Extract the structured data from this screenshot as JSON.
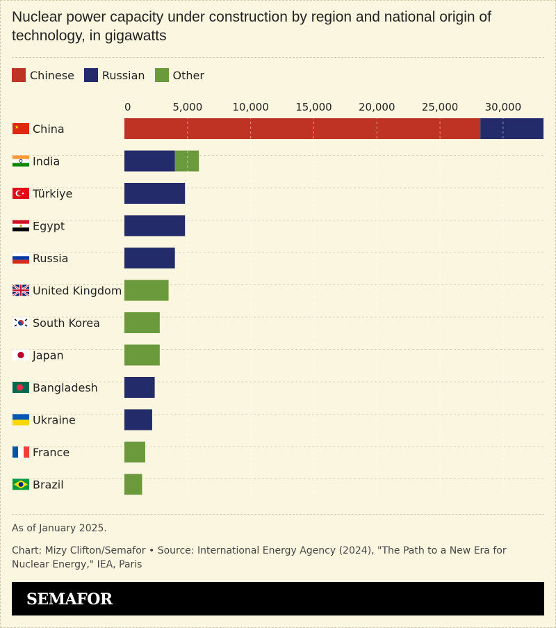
{
  "title": "Nuclear power capacity under construction by region and national origin of technology, in gigawatts",
  "legend": [
    {
      "name": "Chinese",
      "color": "#bf3324"
    },
    {
      "name": "Russian",
      "color": "#232b6b"
    },
    {
      "name": "Other",
      "color": "#6a9a3c"
    }
  ],
  "chart_data": {
    "type": "bar",
    "orientation": "horizontal",
    "stacked": true,
    "categories": [
      "China",
      "India",
      "Türkiye",
      "Egypt",
      "Russia",
      "United Kingdom",
      "South Korea",
      "Japan",
      "Bangladesh",
      "Ukraine",
      "France",
      "Brazil"
    ],
    "flags": [
      "china-flag",
      "india-flag",
      "turkiye-flag",
      "egypt-flag",
      "russia-flag",
      "uk-flag",
      "south-korea-flag",
      "japan-flag",
      "bangladesh-flag",
      "ukraine-flag",
      "france-flag",
      "brazil-flag"
    ],
    "series": [
      {
        "name": "Chinese",
        "color": "#bf3324",
        "values": [
          28200,
          0,
          0,
          0,
          0,
          0,
          0,
          0,
          0,
          0,
          0,
          0
        ]
      },
      {
        "name": "Russian",
        "color": "#232b6b",
        "values": [
          5000,
          4000,
          4800,
          4800,
          4000,
          0,
          0,
          0,
          2400,
          2200,
          0,
          0
        ]
      },
      {
        "name": "Other",
        "color": "#6a9a3c",
        "values": [
          0,
          1900,
          0,
          0,
          0,
          3500,
          2800,
          2800,
          0,
          0,
          1650,
          1400
        ]
      }
    ],
    "xlim": [
      0,
      33200
    ],
    "xticks": [
      0,
      5000,
      10000,
      15000,
      20000,
      25000,
      30000
    ],
    "xtick_labels": [
      "0",
      "5,000",
      "10,000",
      "15,000",
      "20,000",
      "25,000",
      "30,000"
    ],
    "grid": true
  },
  "footer": {
    "note": "As of January 2025.",
    "source": "Chart: Mizy Clifton/Semafor • Source: International Energy Agency (2024), \"The Path to a New Era for Nuclear Energy,\" IEA, Paris",
    "brand": "SEMAFOR"
  }
}
